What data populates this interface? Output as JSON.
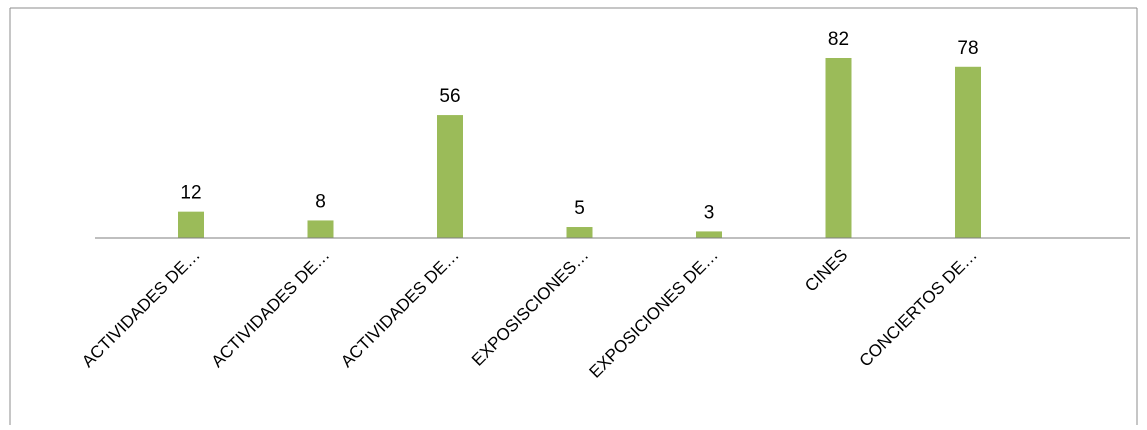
{
  "chart_data": {
    "type": "bar",
    "categories": [
      "ACTIVIDADES DE…",
      "ACTIVIDADES DE…",
      "ACTIVIDADES DE…",
      "EXPOSISCIONES…",
      "EXPOSICIONES DE…",
      "CINES",
      "CONCIERTOS DE…"
    ],
    "values": [
      12,
      8,
      56,
      5,
      3,
      82,
      78
    ],
    "title": "",
    "xlabel": "",
    "ylabel": "",
    "ylim": [
      0,
      90
    ],
    "grid": false,
    "legend": "none",
    "bar_color": "#9bbb59"
  }
}
